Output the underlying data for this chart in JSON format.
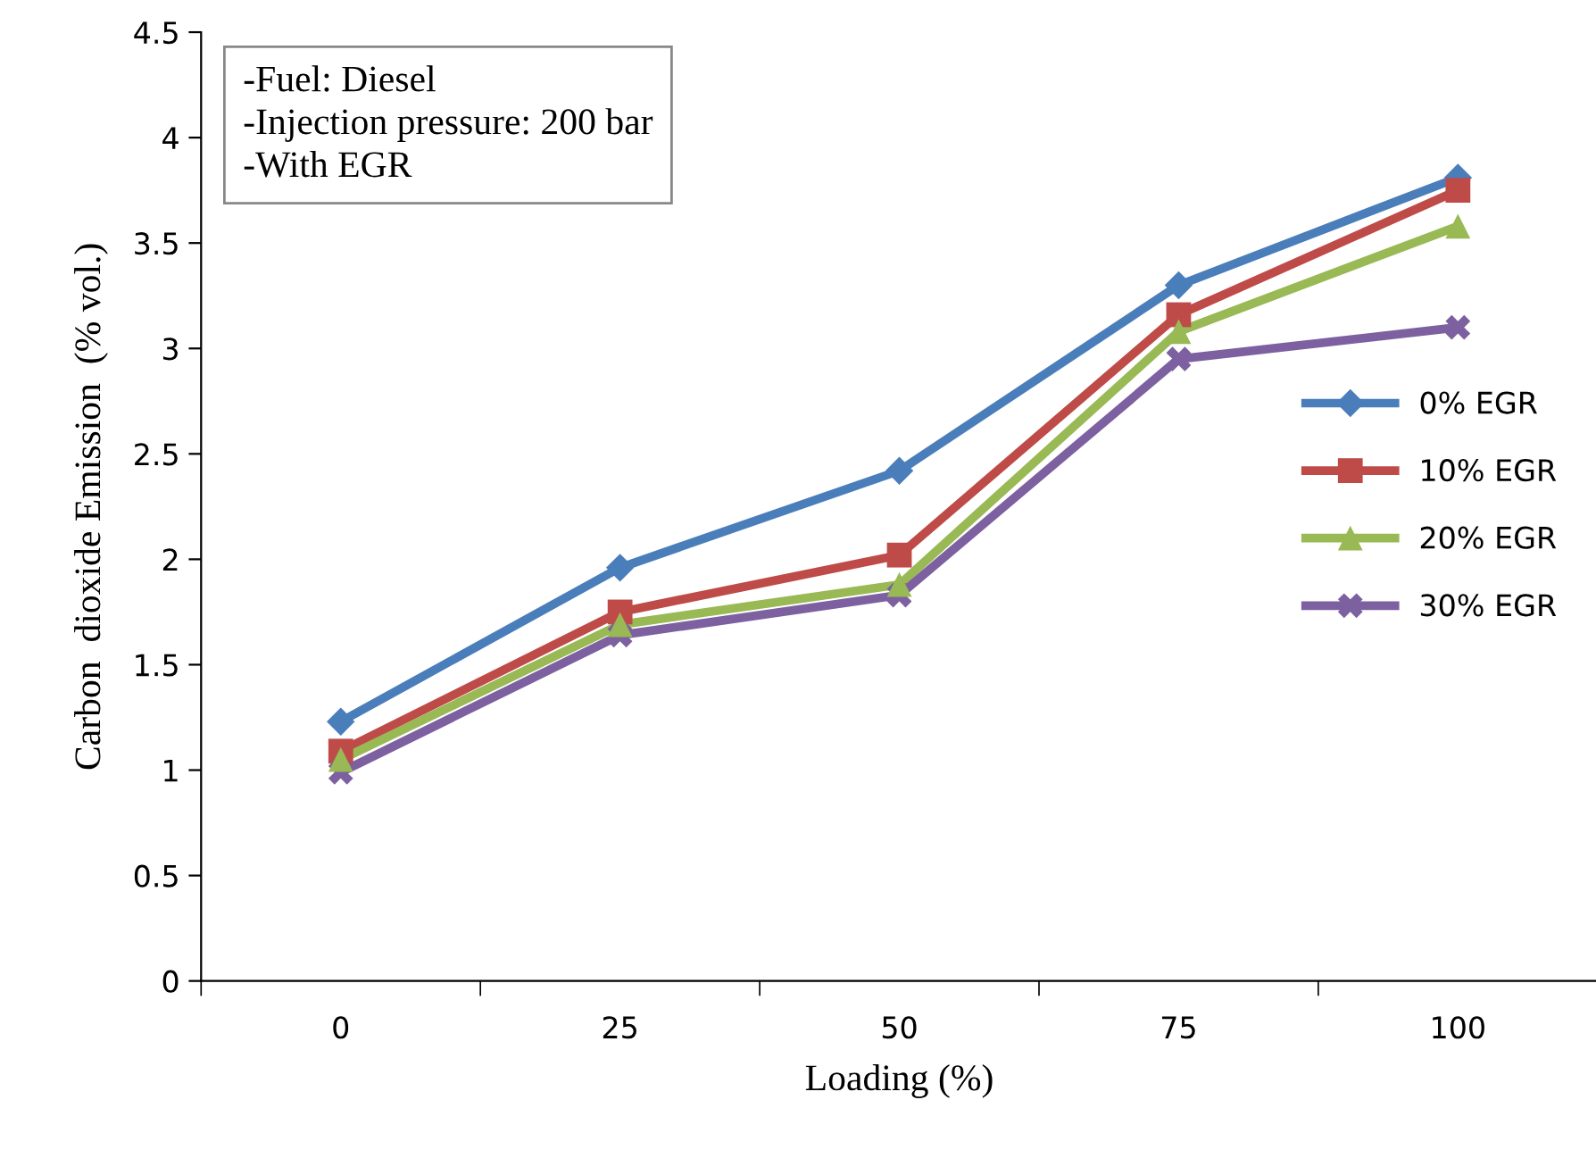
{
  "chart_data": {
    "type": "line",
    "xlabel": "Loading (%)",
    "ylabel": "Carbon  dioxide Emission  (% vol.)",
    "categories": [
      "0",
      "25",
      "50",
      "75",
      "100"
    ],
    "ylim": [
      0,
      4.5
    ],
    "yticks": [
      0,
      0.5,
      1,
      1.5,
      2,
      2.5,
      3,
      3.5,
      4,
      4.5
    ],
    "annotations": [
      "-Fuel: Diesel",
      "-Injection pressure: 200 bar",
      "-With EGR"
    ],
    "legend": "right",
    "grid": false,
    "line_style": "solid",
    "series": [
      {
        "name": "0% EGR",
        "color": "#4a7ebb",
        "marker": "diamond",
        "values": [
          1.23,
          1.96,
          2.42,
          3.3,
          3.81
        ]
      },
      {
        "name": "10% EGR",
        "color": "#be4b48",
        "marker": "square",
        "values": [
          1.09,
          1.75,
          2.02,
          3.16,
          3.75
        ]
      },
      {
        "name": "20% EGR",
        "color": "#98b954",
        "marker": "triangle",
        "values": [
          1.05,
          1.69,
          1.88,
          3.08,
          3.58
        ]
      },
      {
        "name": "30% EGR",
        "color": "#7d60a0",
        "marker": "cross",
        "values": [
          0.99,
          1.64,
          1.83,
          2.95,
          3.1
        ]
      }
    ]
  }
}
